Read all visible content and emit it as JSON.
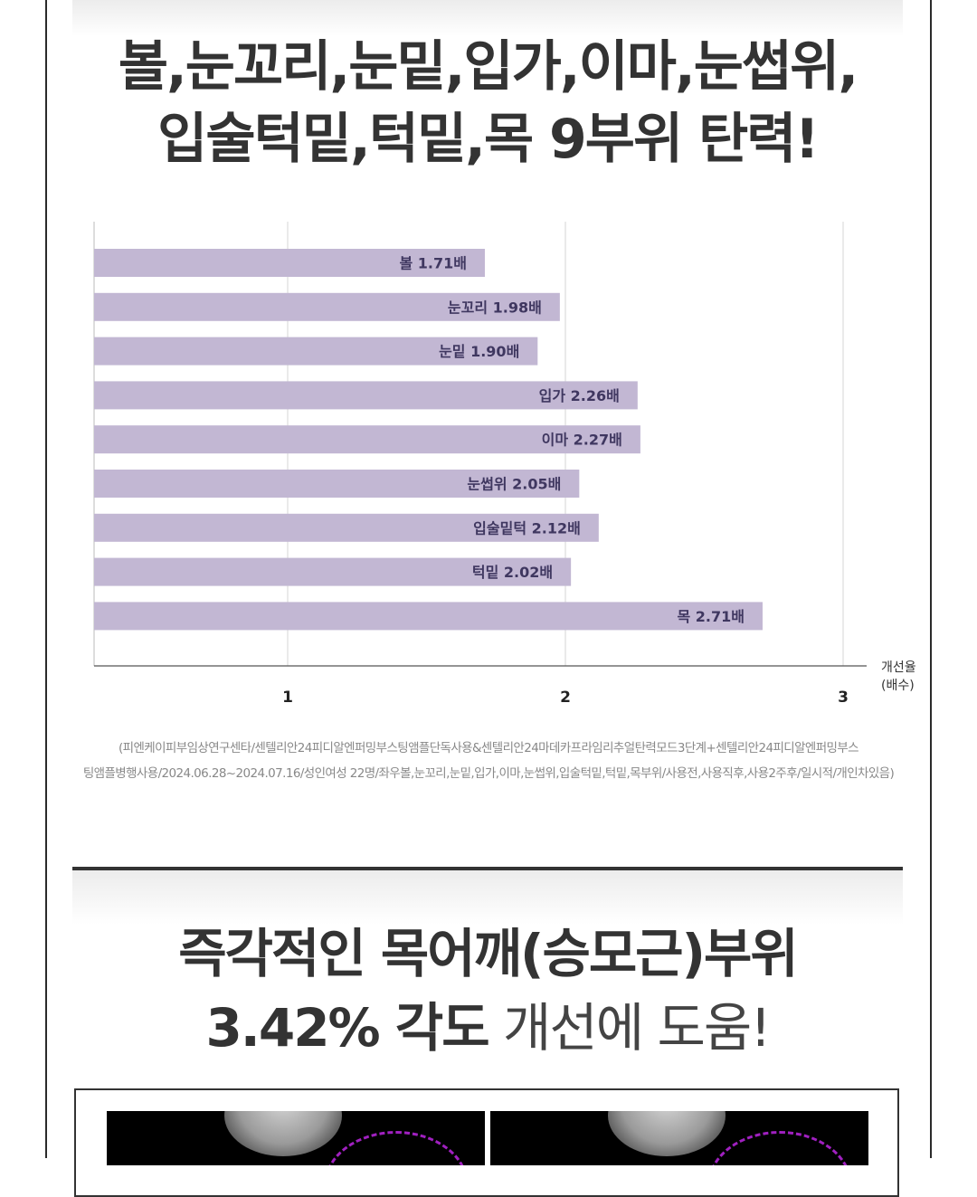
{
  "section1": {
    "title_line1": "볼,눈꼬리,눈밑,입가,이마,눈썹위,",
    "title_line2": "입술턱밑,턱밑,목 9부위 탄력!"
  },
  "chart_data": {
    "type": "bar",
    "orientation": "horizontal",
    "categories": [
      "볼",
      "눈꼬리",
      "눈밑",
      "입가",
      "이마",
      "눈썹위",
      "입술밑턱",
      "턱밑",
      "목"
    ],
    "values": [
      1.71,
      1.98,
      1.9,
      2.26,
      2.27,
      2.05,
      2.12,
      2.02,
      2.71
    ],
    "data_labels": [
      "볼 1.71배",
      "눈꼬리 1.98배",
      "눈밑 1.90배",
      "입가 2.26배",
      "이마 2.27배",
      "눈썹위 2.05배",
      "입술밑턱 2.12배",
      "턱밑 2.02배",
      "목 2.71배"
    ],
    "x_ticks": [
      1,
      2,
      3
    ],
    "xlim": [
      0.3,
      3
    ],
    "xlabel": "개선율",
    "xlabel_unit": "(배수)",
    "bar_color": "#c2b7d3",
    "label_color": "#3f3760",
    "grid": true
  },
  "footnote": {
    "line1": "(피엔케이피부임상연구센타/센텔리안24피디알엔퍼밍부스팅앰플단독사용&센텔리안24마데카프라임리추얼탄력모드3단계+센텔리안24피디알엔퍼밍부스",
    "line2": "팅앰플병행사용/2024.06.28~2024.07.16/성인여성 22명/좌우볼,눈꼬리,눈밑,입가,이마,눈썹위,입술턱밑,턱밑,목부위/사용전,사용직후,사용2주후/일시적/개인차있음)"
  },
  "section2": {
    "title_line1": "즉각적인 목어깨(승모근)부위",
    "title_line2_bold": "3.42% 각도",
    "title_line2_light": " 개선에 도움!"
  }
}
